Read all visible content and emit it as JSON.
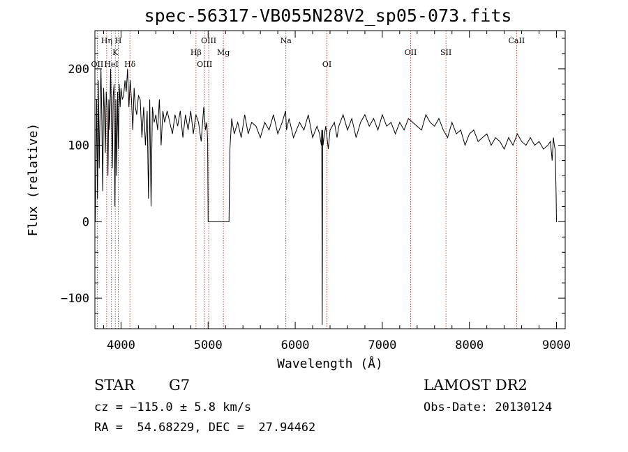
{
  "chart_data": {
    "type": "line",
    "title": "spec-56317-VB055N28V2_sp05-073.fits",
    "xlabel": "Wavelength (Å)",
    "ylabel": "Flux (relative)",
    "xlim": [
      3700,
      9100
    ],
    "ylim": [
      -140,
      250
    ],
    "xticks": [
      4000,
      5000,
      6000,
      7000,
      8000,
      9000
    ],
    "yticks": [
      -100,
      0,
      100,
      200
    ],
    "grid": false,
    "line_color": "#000000",
    "marker_color": "#c0392b",
    "spectral_lines": [
      {
        "label": "OII",
        "x": 3727,
        "row": 3
      },
      {
        "label": "Hη",
        "x": 3835,
        "row": 1
      },
      {
        "label": "HeI",
        "x": 3889,
        "row": 3
      },
      {
        "label": "K",
        "x": 3934,
        "row": 2
      },
      {
        "label": "H",
        "x": 3969,
        "row": 1
      },
      {
        "label": "Hδ",
        "x": 4102,
        "row": 3
      },
      {
        "label": "Hβ",
        "x": 4861,
        "row": 2
      },
      {
        "label": "OIII",
        "x": 4959,
        "row": 3
      },
      {
        "label": "OIII",
        "x": 5007,
        "row": 1
      },
      {
        "label": "Mg",
        "x": 5175,
        "row": 2
      },
      {
        "label": "Na",
        "x": 5893,
        "row": 1
      },
      {
        "label": "OI",
        "x": 6364,
        "row": 3
      },
      {
        "label": "OII",
        "x": 7325,
        "row": 2
      },
      {
        "label": "SII",
        "x": 7731,
        "row": 2
      },
      {
        "label": "CaII",
        "x": 8542,
        "row": 1
      }
    ],
    "series": [
      {
        "x": [
          3705,
          3712,
          3720,
          3730,
          3740,
          3750,
          3760,
          3770,
          3780,
          3790,
          3800,
          3810,
          3820,
          3830,
          3840,
          3850,
          3860,
          3870,
          3880,
          3890,
          3900,
          3910,
          3920,
          3930,
          3940,
          3950,
          3960,
          3970,
          3980,
          3990,
          4000,
          4015,
          4030,
          4045,
          4060,
          4075,
          4090,
          4105,
          4120,
          4135,
          4150,
          4165,
          4180,
          4200,
          4220,
          4240,
          4260,
          4280,
          4300,
          4315,
          4330,
          4345,
          4360,
          4380,
          4400,
          4420,
          4440,
          4460,
          4480,
          4500,
          4530,
          4560,
          4590,
          4620,
          4650,
          4680,
          4710,
          4740,
          4770,
          4800,
          4830,
          4860,
          4890,
          4920,
          4950,
          4970,
          4985,
          4995,
          5000,
          5050,
          5100,
          5150,
          5200,
          5240,
          5250,
          5270,
          5300,
          5340,
          5380,
          5420,
          5460,
          5500,
          5550,
          5600,
          5650,
          5700,
          5750,
          5800,
          5850,
          5890,
          5900,
          5930,
          5980,
          6050,
          6100,
          6150,
          6200,
          6250,
          6280,
          6300,
          6305,
          6310,
          6315,
          6320,
          6330,
          6350,
          6380,
          6400,
          6450,
          6480,
          6500,
          6550,
          6600,
          6650,
          6700,
          6750,
          6800,
          6850,
          6900,
          6950,
          7000,
          7050,
          7100,
          7150,
          7200,
          7250,
          7300,
          7350,
          7400,
          7450,
          7500,
          7550,
          7600,
          7650,
          7700,
          7750,
          7800,
          7850,
          7900,
          7950,
          8000,
          8050,
          8100,
          8150,
          8200,
          8250,
          8300,
          8350,
          8400,
          8450,
          8500,
          8550,
          8600,
          8650,
          8700,
          8750,
          8800,
          8850,
          8900,
          8930,
          8950,
          8965,
          8975,
          8985,
          8995,
          9000,
          9005
        ],
        "y": [
          0,
          80,
          160,
          30,
          185,
          70,
          150,
          200,
          130,
          40,
          175,
          145,
          90,
          170,
          150,
          60,
          160,
          120,
          200,
          140,
          70,
          165,
          180,
          20,
          160,
          60,
          170,
          95,
          180,
          150,
          175,
          160,
          165,
          185,
          170,
          200,
          150,
          185,
          160,
          120,
          175,
          150,
          140,
          165,
          160,
          110,
          150,
          100,
          145,
          30,
          160,
          20,
          150,
          130,
          140,
          120,
          160,
          100,
          145,
          130,
          145,
          130,
          115,
          140,
          125,
          145,
          110,
          140,
          120,
          145,
          115,
          140,
          130,
          105,
          150,
          120,
          130,
          105,
          0,
          0,
          0,
          0,
          0,
          0,
          95,
          135,
          115,
          130,
          110,
          140,
          115,
          130,
          125,
          110,
          130,
          120,
          140,
          115,
          130,
          145,
          120,
          135,
          110,
          130,
          120,
          140,
          110,
          125,
          115,
          100,
          120,
          -135,
          120,
          100,
          110,
          125,
          95,
          120,
          130,
          110,
          125,
          140,
          120,
          135,
          110,
          130,
          140,
          125,
          135,
          120,
          140,
          125,
          130,
          115,
          130,
          120,
          135,
          130,
          125,
          120,
          140,
          130,
          125,
          135,
          120,
          110,
          130,
          115,
          120,
          100,
          115,
          120,
          105,
          110,
          115,
          100,
          110,
          105,
          95,
          110,
          100,
          115,
          105,
          100,
          110,
          100,
          105,
          95,
          100,
          105,
          80,
          110,
          100,
          95,
          40,
          0,
          0
        ]
      }
    ]
  },
  "info": {
    "class": "STAR",
    "subclass": "G7",
    "cz": "cz = −115.0 ± 5.8 km/s",
    "coords": "RA =  54.68229, DEC =  27.94462",
    "survey": "LAMOST DR2",
    "obs_date": "Obs-Date: 20130124"
  }
}
